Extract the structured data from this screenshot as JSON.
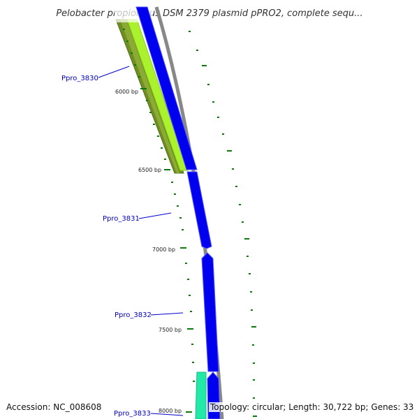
{
  "title": "Pelobacter propionicus DSM 2379 plasmid pPRO2, complete sequ...",
  "footer": {
    "accession": "Accession: NC_008608",
    "summary": "Topology: circular; Length: 30,722 bp; Genes: 33"
  },
  "tick_labels": [
    "6000 bp",
    "6500 bp",
    "7000 bp",
    "7500 bp",
    "8000 bp"
  ],
  "gene_labels": [
    "Ppro_3830",
    "Ppro_3831",
    "Ppro_3832",
    "Ppro_3833"
  ],
  "colors": {
    "cds": "#0000ee",
    "cds_edge": "#6666ff",
    "gene_yellowgreen": "#99ee22",
    "gene_olive": "#668822",
    "gene_teal": "#22ddaa",
    "backbone": "#888888",
    "gc_ticks": "#0b7a0b",
    "label": "#0000c0"
  }
}
